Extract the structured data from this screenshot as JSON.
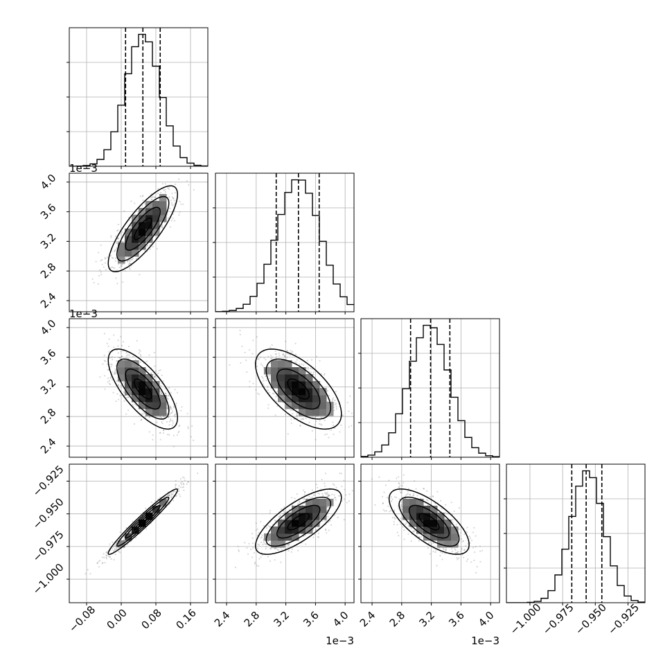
{
  "chart_data": {
    "type": "corner",
    "variables": [
      {
        "range": [
          -0.12,
          0.2
        ],
        "ticks": [
          -0.08,
          0.0,
          0.08,
          0.16
        ],
        "tick_labels": [
          "−0.08",
          "0.00",
          "0.08",
          "0.16"
        ],
        "offset_text": ""
      },
      {
        "range": [
          2.25,
          4.12
        ],
        "ticks": [
          2.4,
          2.8,
          3.2,
          3.6,
          4.0
        ],
        "tick_labels": [
          "2.4",
          "2.8",
          "3.2",
          "3.6",
          "4.0"
        ],
        "offset_text": "1e−3"
      },
      {
        "range": [
          2.25,
          4.12
        ],
        "ticks": [
          2.4,
          2.8,
          3.2,
          3.6,
          4.0
        ],
        "tick_labels": [
          "2.4",
          "2.8",
          "3.2",
          "3.6",
          "4.0"
        ],
        "offset_text": "1e−3"
      },
      {
        "range": [
          -1.018,
          -0.912
        ],
        "ticks": [
          -1.0,
          -0.975,
          -0.95,
          -0.925
        ],
        "tick_labels": [
          "−1.000",
          "−0.975",
          "−0.950",
          "−0.925"
        ],
        "offset_text": ""
      }
    ],
    "marginals": [
      {
        "mean": 0.05,
        "sd": 0.04,
        "quantiles": [
          0.01,
          0.05,
          0.09
        ]
      },
      {
        "mean": 3.37,
        "sd": 0.29,
        "quantiles": [
          3.07,
          3.37,
          3.65
        ]
      },
      {
        "mean": 3.17,
        "sd": 0.27,
        "quantiles": [
          2.92,
          3.19,
          3.45
        ]
      },
      {
        "mean": -0.956,
        "sd": 0.0125,
        "quantiles": [
          -0.968,
          -0.957,
          -0.945
        ]
      }
    ],
    "correlations": [
      {
        "i": 1,
        "j": 0,
        "rho": 0.8
      },
      {
        "i": 2,
        "j": 0,
        "rho": -0.72
      },
      {
        "i": 2,
        "j": 1,
        "rho": -0.62
      },
      {
        "i": 3,
        "j": 0,
        "rho": 0.97
      },
      {
        "i": 3,
        "j": 1,
        "rho": 0.74
      },
      {
        "i": 3,
        "j": 2,
        "rho": -0.7
      }
    ],
    "histogram_bins": 20,
    "contour_levels": [
      0.5,
      1.0,
      1.5,
      2.0
    ],
    "grid": true,
    "colors": {
      "density": "#000000",
      "lines": "#000000",
      "grid": "#b0b0b0"
    }
  }
}
